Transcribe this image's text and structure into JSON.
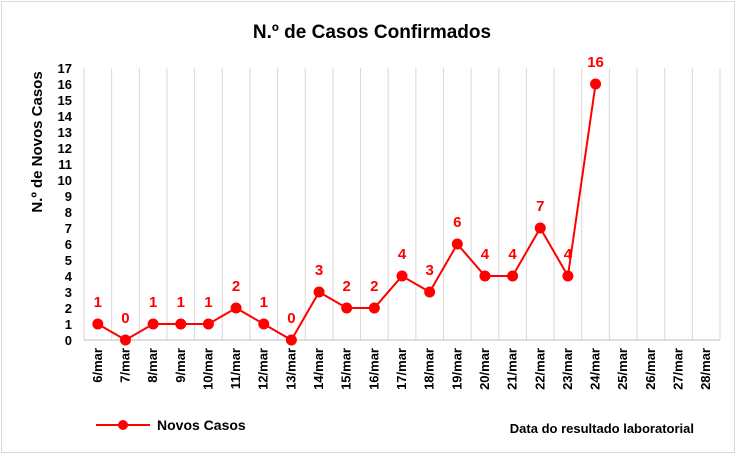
{
  "chart_data": {
    "type": "line",
    "title": "N.º de Casos Confirmados",
    "ylabel": "N.º de Novos Casos",
    "xlabel": "Data do resultado laboratorial",
    "ylim": [
      0,
      17
    ],
    "yticks": [
      0,
      1,
      2,
      3,
      4,
      5,
      6,
      7,
      8,
      9,
      10,
      11,
      12,
      13,
      14,
      15,
      16,
      17
    ],
    "categories": [
      "6/mar",
      "7/mar",
      "8/mar",
      "9/mar",
      "10/mar",
      "11/mar",
      "12/mar",
      "13/mar",
      "14/mar",
      "15/mar",
      "16/mar",
      "17/mar",
      "18/mar",
      "19/mar",
      "20/mar",
      "21/mar",
      "22/mar",
      "23/mar",
      "24/mar",
      "25/mar",
      "26/mar",
      "27/mar",
      "28/mar"
    ],
    "series": [
      {
        "name": "Novos Casos",
        "color": "#ff0000",
        "values": [
          1,
          0,
          1,
          1,
          1,
          2,
          1,
          0,
          3,
          2,
          2,
          4,
          3,
          6,
          4,
          4,
          7,
          4,
          16,
          null,
          null,
          null,
          null
        ]
      }
    ],
    "grid": "vertical",
    "legend": "bottom-left"
  }
}
